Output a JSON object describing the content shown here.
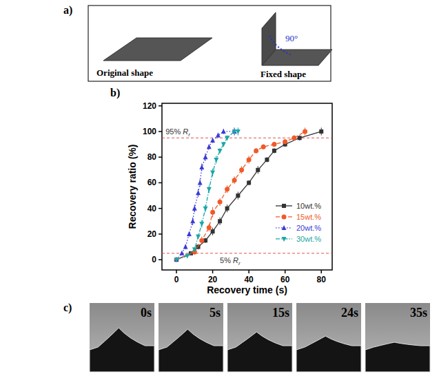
{
  "panel_letters": [
    "a)",
    "b)",
    "c)"
  ],
  "panel_a": {
    "original_label": "Original shape",
    "fixed_label": "Fixed shape",
    "angle_label": "90°"
  },
  "chart_data": {
    "type": "line",
    "x_label": "Recovery time (s)",
    "y_label": "Recovery ratio (%)",
    "xlim": [
      -8,
      86
    ],
    "ylim": [
      -8,
      122
    ],
    "xticks": [
      0,
      20,
      40,
      60,
      80
    ],
    "yticks": [
      0,
      20,
      40,
      60,
      80,
      100,
      120
    ],
    "grid": false,
    "legend": "lower right",
    "annotations": [
      {
        "text": "95% ",
        "symbol": "R",
        "subscript": "r",
        "value": 95
      },
      {
        "text": "5% ",
        "symbol": "R",
        "subscript": "r",
        "value": 5
      }
    ],
    "series": [
      {
        "name": "10wt.%",
        "color": "#333333",
        "marker": "square",
        "line_style": "solid",
        "x": [
          0,
          8,
          12,
          16,
          20,
          24,
          28,
          34,
          40,
          45,
          50,
          54,
          60,
          68,
          80
        ],
        "values": [
          0,
          5,
          10,
          15,
          22,
          30,
          40,
          50,
          60,
          70,
          78,
          85,
          90,
          95,
          100
        ],
        "errors": [
          0,
          1,
          2,
          2,
          3,
          3,
          3,
          3,
          2,
          3,
          2,
          2,
          2,
          2,
          3
        ]
      },
      {
        "name": "15wt.%",
        "color": "#f05a28",
        "marker": "circle",
        "line_style": "dashed",
        "x": [
          0,
          10,
          14,
          18,
          20,
          24,
          28,
          32,
          36,
          40,
          44,
          48,
          54,
          60,
          65,
          71
        ],
        "values": [
          0,
          6,
          15,
          25,
          37,
          45,
          55,
          62,
          70,
          78,
          85,
          88,
          90,
          92,
          95,
          100
        ],
        "errors": [
          0,
          2,
          3,
          3,
          4,
          3,
          3,
          3,
          3,
          3,
          2,
          2,
          2,
          2,
          2,
          3
        ]
      },
      {
        "name": "20wt.%",
        "color": "#3a3ad6",
        "marker": "triangle-up",
        "line_style": "dotted",
        "x": [
          0,
          3,
          5,
          7,
          9,
          10,
          12,
          13,
          14,
          16,
          18,
          20,
          23,
          26,
          32
        ],
        "values": [
          0,
          5,
          10,
          20,
          30,
          40,
          52,
          60,
          72,
          80,
          88,
          93,
          97,
          100,
          100
        ],
        "errors": [
          0,
          1,
          2,
          2,
          3,
          3,
          3,
          3,
          3,
          3,
          2,
          2,
          2,
          2,
          3
        ]
      },
      {
        "name": "30wt.%",
        "color": "#1aa6a6",
        "marker": "triangle-down",
        "line_style": "dashdot",
        "x": [
          0,
          6,
          10,
          12,
          14,
          16,
          18,
          20,
          22,
          24,
          26,
          28,
          32,
          34
        ],
        "values": [
          0,
          3,
          8,
          18,
          28,
          40,
          55,
          68,
          78,
          85,
          90,
          95,
          100,
          100
        ],
        "errors": [
          0,
          1,
          2,
          2,
          3,
          3,
          3,
          3,
          3,
          2,
          2,
          2,
          2,
          3
        ]
      }
    ]
  },
  "panel_c": {
    "frame_labels": [
      "0s",
      "5s",
      "15s",
      "24s",
      "35s"
    ]
  }
}
